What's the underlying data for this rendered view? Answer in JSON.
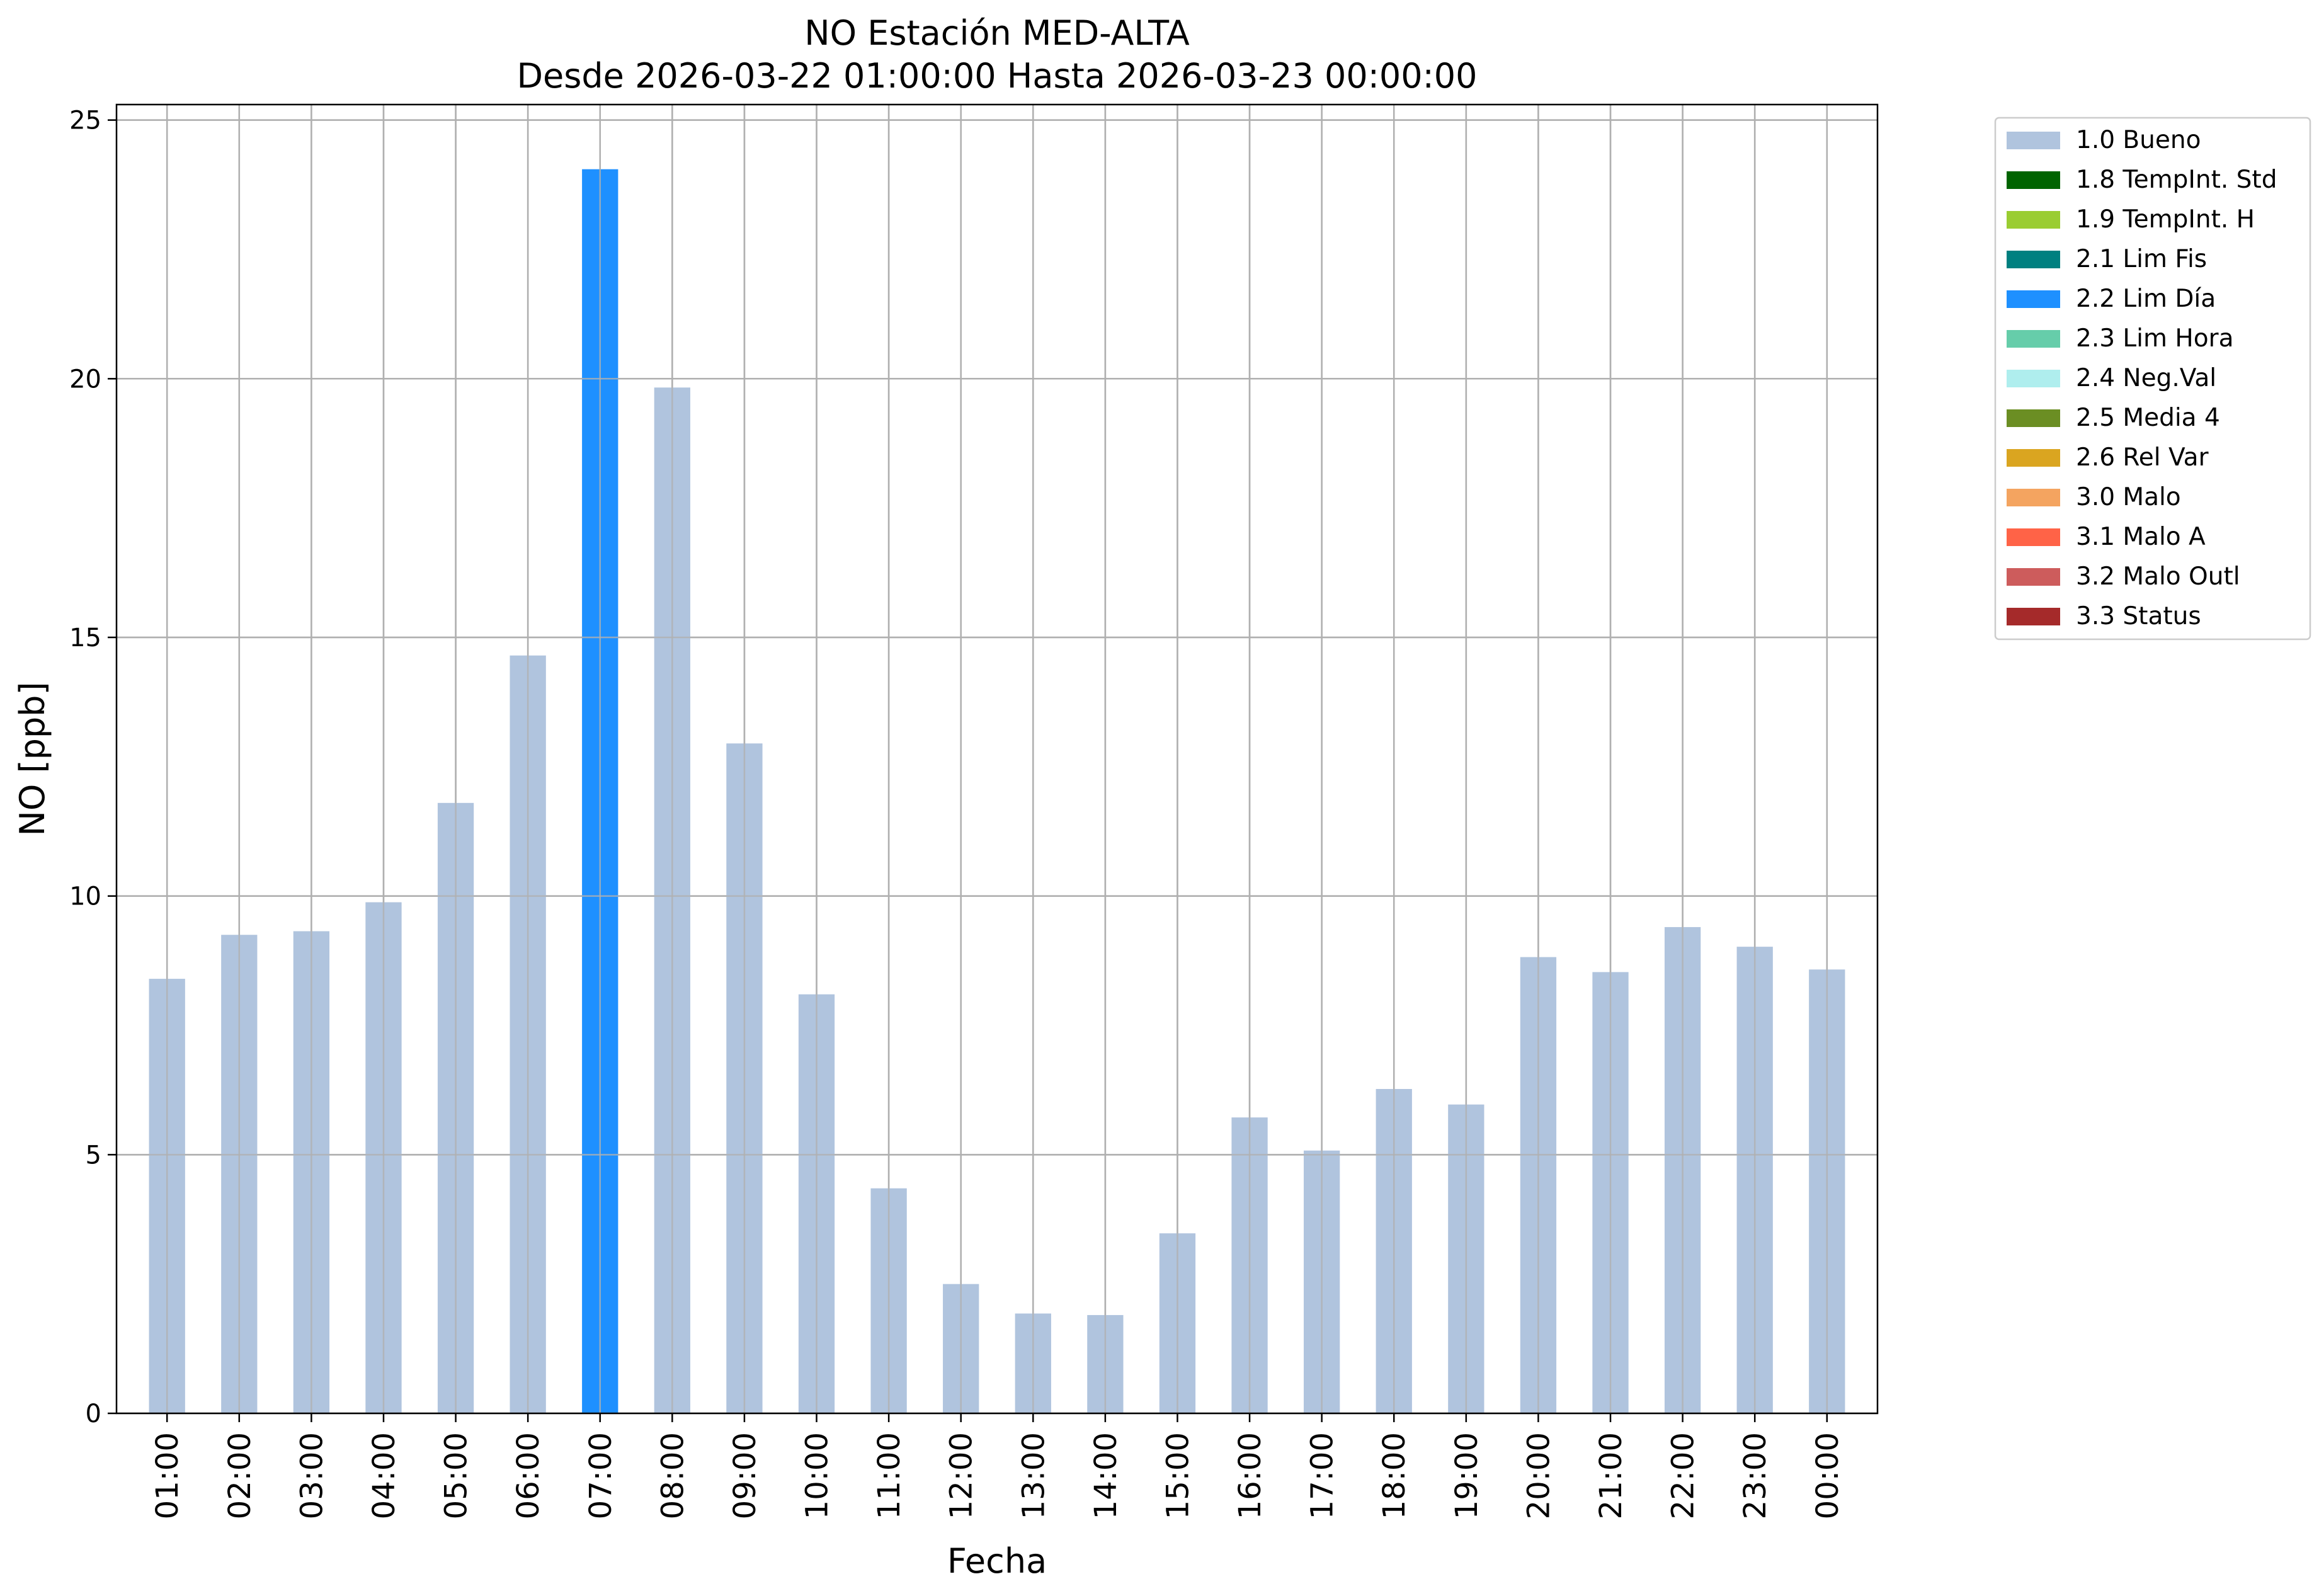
{
  "chart_data": {
    "type": "bar",
    "title": "NO Estación MED-ALTA",
    "subtitle": "Desde 2026-03-22 01:00:00 Hasta 2026-03-23 00:00:00",
    "xlabel": "Fecha",
    "ylabel": "NO [ppb]",
    "ylim": [
      0,
      25.3
    ],
    "yticks": [
      0,
      5,
      10,
      15,
      20,
      25
    ],
    "grid": true,
    "legend_position": "outside-top-right",
    "categories": [
      "01:00",
      "02:00",
      "03:00",
      "04:00",
      "05:00",
      "06:00",
      "07:00",
      "08:00",
      "09:00",
      "10:00",
      "11:00",
      "12:00",
      "13:00",
      "14:00",
      "15:00",
      "16:00",
      "17:00",
      "18:00",
      "19:00",
      "20:00",
      "21:00",
      "22:00",
      "23:00",
      "00:00"
    ],
    "values": [
      8.4,
      9.25,
      9.32,
      9.88,
      11.8,
      14.65,
      24.05,
      19.83,
      12.95,
      8.1,
      4.35,
      2.5,
      1.93,
      1.9,
      3.48,
      5.72,
      5.08,
      6.27,
      5.97,
      8.82,
      8.53,
      9.4,
      9.02,
      8.58
    ],
    "flags": [
      "1.0",
      "1.0",
      "1.0",
      "1.0",
      "1.0",
      "1.0",
      "2.2",
      "1.0",
      "1.0",
      "1.0",
      "1.0",
      "1.0",
      "1.0",
      "1.0",
      "1.0",
      "1.0",
      "1.0",
      "1.0",
      "1.0",
      "1.0",
      "1.0",
      "1.0",
      "1.0",
      "1.0"
    ],
    "legend": [
      {
        "code": "1.0",
        "label": "1.0 Bueno",
        "color": "#b0c4de"
      },
      {
        "code": "1.8",
        "label": "1.8 TempInt. Std",
        "color": "#006400"
      },
      {
        "code": "1.9",
        "label": "1.9 TempInt. H",
        "color": "#9acd32"
      },
      {
        "code": "2.1",
        "label": "2.1 Lim Fis",
        "color": "#008080"
      },
      {
        "code": "2.2",
        "label": "2.2 Lim Día",
        "color": "#1e90ff"
      },
      {
        "code": "2.3",
        "label": "2.3 Lim Hora",
        "color": "#66cdaa"
      },
      {
        "code": "2.4",
        "label": "2.4 Neg.Val",
        "color": "#afeeee"
      },
      {
        "code": "2.5",
        "label": "2.5 Media 4",
        "color": "#6b8e23"
      },
      {
        "code": "2.6",
        "label": "2.6 Rel Var",
        "color": "#daa520"
      },
      {
        "code": "3.0",
        "label": "3.0 Malo",
        "color": "#f4a460"
      },
      {
        "code": "3.1",
        "label": "3.1 Malo A",
        "color": "#ff6347"
      },
      {
        "code": "3.2",
        "label": "3.2 Malo Outl",
        "color": "#cd5c5c"
      },
      {
        "code": "3.3",
        "label": "3.3 Status",
        "color": "#a52a2a"
      }
    ]
  }
}
